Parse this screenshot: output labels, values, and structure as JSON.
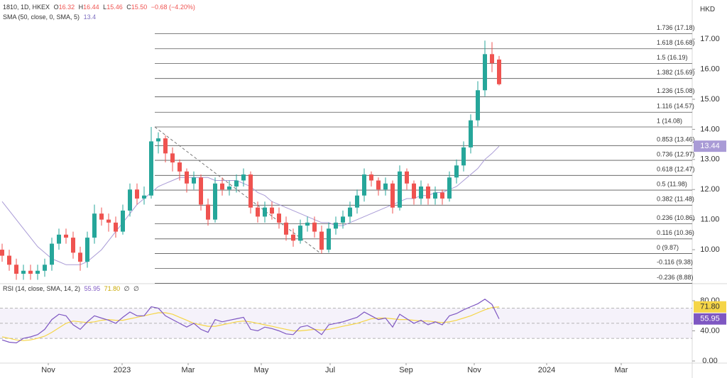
{
  "header": {
    "symbol": "1810, 1D, HKEX",
    "ohlc": [
      [
        "O",
        "16.32"
      ],
      [
        "H",
        "16.44"
      ],
      [
        "L",
        "15.46"
      ],
      [
        "C",
        "15.50"
      ]
    ],
    "change": "−0.68 (−4.20%)",
    "sma_value": "13.4",
    "rsi_values": [
      "55.95",
      "71.80",
      "∅",
      "∅"
    ],
    "currency": "HKD"
  },
  "chart_data": [
    {
      "type": "candlestick",
      "up_color": "#26a69a",
      "down_color": "#ef5350",
      "ylim": [
        8.87,
        18.3
      ],
      "yticks": [
        {
          "value": 17,
          "label": "17.00"
        },
        {
          "value": 16,
          "label": "16.00"
        },
        {
          "value": 15,
          "label": "15.00"
        },
        {
          "value": 14,
          "label": "14.00"
        },
        {
          "value": 13,
          "label": "13.00"
        },
        {
          "value": 12,
          "label": "12.00"
        },
        {
          "value": 11,
          "label": "11.00"
        },
        {
          "value": 10,
          "label": "10.00"
        }
      ],
      "open": [
        10.0,
        9.8,
        9.5,
        9.2,
        9.3,
        9.2,
        9.3,
        9.5,
        10.2,
        10.5,
        10.4,
        9.9,
        9.6,
        10.4,
        11.2,
        11.0,
        10.9,
        10.6,
        11.3,
        12.0,
        11.7,
        11.8,
        13.6,
        13.7,
        13.2,
        12.9,
        12.6,
        12.2,
        12.4,
        11.5,
        11.0,
        12.2,
        12.0,
        12.1,
        12.3,
        12.5,
        11.4,
        11.1,
        11.4,
        11.2,
        10.9,
        10.5,
        10.3,
        10.8,
        10.9,
        10.6,
        10.0,
        10.7,
        10.9,
        11.1,
        11.4,
        11.8,
        12.5,
        12.3,
        12.0,
        12.2,
        11.4,
        12.6,
        12.2,
        11.7,
        12.1,
        11.7,
        11.9,
        11.7,
        12.4,
        12.8,
        13.4,
        14.3,
        15.3,
        16.5,
        16.32
      ],
      "high": [
        10.2,
        10.0,
        9.7,
        9.5,
        9.5,
        9.5,
        9.7,
        10.4,
        10.7,
        10.7,
        10.6,
        10.1,
        10.6,
        11.5,
        11.4,
        11.2,
        11.1,
        11.5,
        12.2,
        12.2,
        12.1,
        14.08,
        13.9,
        13.8,
        13.4,
        13.0,
        12.7,
        12.6,
        12.5,
        11.7,
        12.4,
        12.4,
        12.3,
        12.5,
        12.7,
        12.6,
        11.6,
        11.6,
        11.6,
        11.4,
        11.1,
        10.7,
        11.0,
        11.1,
        11.1,
        10.8,
        10.9,
        11.1,
        11.3,
        11.6,
        12.0,
        12.7,
        12.6,
        12.4,
        12.4,
        12.3,
        12.8,
        12.7,
        12.3,
        12.3,
        12.2,
        12.1,
        12.0,
        12.6,
        13.0,
        13.6,
        14.5,
        15.6,
        16.95,
        16.9,
        16.44
      ],
      "low": [
        9.6,
        9.3,
        9.0,
        9.0,
        9.0,
        9.0,
        9.1,
        9.3,
        10.0,
        10.2,
        9.7,
        9.3,
        9.4,
        10.2,
        10.8,
        10.6,
        10.4,
        10.5,
        11.1,
        11.5,
        11.5,
        11.7,
        13.2,
        12.9,
        12.6,
        12.3,
        11.9,
        12.0,
        11.3,
        10.8,
        10.9,
        11.8,
        11.8,
        11.9,
        12.1,
        11.2,
        10.9,
        10.9,
        11.0,
        10.7,
        10.3,
        10.1,
        10.2,
        10.6,
        10.4,
        9.87,
        9.9,
        10.5,
        10.7,
        10.9,
        11.2,
        11.6,
        12.1,
        11.8,
        11.8,
        11.2,
        11.3,
        12.0,
        11.5,
        11.5,
        11.5,
        11.5,
        11.5,
        11.6,
        12.2,
        12.6,
        13.2,
        14.1,
        15.1,
        15.9,
        15.46
      ],
      "close": [
        9.8,
        9.5,
        9.2,
        9.3,
        9.2,
        9.3,
        9.5,
        10.2,
        10.5,
        10.4,
        9.9,
        9.6,
        10.4,
        11.2,
        11.0,
        10.9,
        10.6,
        11.3,
        12.0,
        11.7,
        11.8,
        13.6,
        13.7,
        13.2,
        12.9,
        12.6,
        12.2,
        12.4,
        11.5,
        11.0,
        12.2,
        12.0,
        12.1,
        12.3,
        12.5,
        11.4,
        11.1,
        11.4,
        11.2,
        10.9,
        10.5,
        10.3,
        10.8,
        10.9,
        10.6,
        10.0,
        10.7,
        10.9,
        11.1,
        11.4,
        11.8,
        12.5,
        12.3,
        12.0,
        12.2,
        11.4,
        12.6,
        12.2,
        11.7,
        12.1,
        11.7,
        11.9,
        11.7,
        12.4,
        12.8,
        13.4,
        14.3,
        15.3,
        16.5,
        16.2,
        15.5
      ],
      "series": [
        {
          "name": "SMA (50, close, 0, SMA, 5)",
          "color": "#a99bd6",
          "values": [
            11.6,
            11.3,
            11.0,
            10.7,
            10.4,
            10.1,
            9.9,
            9.7,
            9.6,
            9.5,
            9.5,
            9.5,
            9.6,
            9.8,
            10.0,
            10.3,
            10.6,
            10.9,
            11.2,
            11.5,
            11.7,
            11.9,
            12.1,
            12.2,
            12.3,
            12.4,
            12.4,
            12.4,
            12.4,
            12.4,
            12.3,
            12.3,
            12.3,
            12.3,
            12.2,
            12.1,
            11.9,
            11.8,
            11.6,
            11.5,
            11.4,
            11.3,
            11.2,
            11.1,
            11.0,
            10.9,
            10.9,
            10.8,
            10.8,
            10.9,
            11.0,
            11.1,
            11.2,
            11.3,
            11.4,
            11.5,
            11.6,
            11.7,
            11.7,
            11.8,
            11.8,
            11.9,
            11.9,
            12.0,
            12.1,
            12.3,
            12.5,
            12.7,
            13.0,
            13.2,
            13.44
          ]
        }
      ],
      "fib_levels": [
        {
          "value": 17.18,
          "label": "1.736 (17.18)"
        },
        {
          "value": 16.68,
          "label": "1.618 (16.68)"
        },
        {
          "value": 16.19,
          "label": "1.5 (16.19)"
        },
        {
          "value": 15.69,
          "label": "1.382 (15.69)"
        },
        {
          "value": 15.08,
          "label": "1.236 (15.08)"
        },
        {
          "value": 14.57,
          "label": "1.116 (14.57)"
        },
        {
          "value": 14.08,
          "label": "1 (14.08)"
        },
        {
          "value": 13.46,
          "label": "0.853 (13.46)"
        },
        {
          "value": 12.97,
          "label": "0.736 (12.97)"
        },
        {
          "value": 12.47,
          "label": "0.618 (12.47)"
        },
        {
          "value": 11.98,
          "label": "0.5 (11.98)"
        },
        {
          "value": 11.48,
          "label": "0.382 (11.48)"
        },
        {
          "value": 10.86,
          "label": "0.236 (10.86)"
        },
        {
          "value": 10.36,
          "label": "0.116 (10.36)"
        },
        {
          "value": 9.87,
          "label": "0 (9.87)"
        },
        {
          "value": 9.38,
          "label": "-0.116 (9.38)"
        },
        {
          "value": 8.88,
          "label": "-0.236 (8.88)"
        }
      ]
    },
    {
      "type": "line",
      "ylim": [
        -2.8,
        102.6
      ],
      "yticks": [
        {
          "value": 80,
          "label": "80.00"
        },
        {
          "value": 40,
          "label": "40.00"
        },
        {
          "value": 0,
          "label": "0.00"
        }
      ],
      "levels": [
        70,
        50,
        30
      ],
      "xlim": [
        -0.3,
        97.2
      ],
      "xticks": [
        {
          "value": 6.5,
          "label": "Nov"
        },
        {
          "value": 16.9,
          "label": "2023"
        },
        {
          "value": 26.2,
          "label": "Mar"
        },
        {
          "value": 36.5,
          "label": "May"
        },
        {
          "value": 46.2,
          "label": "Jul"
        },
        {
          "value": 56.9,
          "label": "Sep"
        },
        {
          "value": 66.5,
          "label": "Nov"
        },
        {
          "value": 76.7,
          "label": "2024"
        },
        {
          "value": 87.2,
          "label": "Mar"
        }
      ],
      "series": [
        {
          "name": "RSI (14, close, SMA, 14, 2)",
          "color": "#7e57c2",
          "values": [
            28,
            25,
            24,
            30,
            32,
            35,
            42,
            55,
            62,
            60,
            48,
            42,
            52,
            60,
            57,
            54,
            50,
            58,
            65,
            60,
            60,
            72,
            70,
            60,
            55,
            50,
            45,
            50,
            42,
            38,
            55,
            52,
            54,
            56,
            58,
            42,
            40,
            45,
            43,
            40,
            36,
            35,
            45,
            47,
            42,
            35,
            48,
            50,
            52,
            55,
            58,
            65,
            60,
            55,
            57,
            45,
            62,
            56,
            50,
            54,
            48,
            52,
            48,
            60,
            63,
            68,
            72,
            76,
            82,
            75,
            55.95
          ]
        },
        {
          "color": "#f5d547",
          "values": [
            32,
            30,
            28,
            27,
            28,
            30,
            33,
            38,
            44,
            50,
            53,
            52,
            51,
            52,
            54,
            55,
            54,
            54,
            56,
            58,
            60,
            62,
            64,
            64,
            62,
            58,
            54,
            50,
            48,
            46,
            46,
            48,
            50,
            52,
            53,
            52,
            50,
            48,
            46,
            44,
            42,
            40,
            40,
            41,
            42,
            41,
            42,
            44,
            46,
            48,
            50,
            53,
            56,
            57,
            57,
            56,
            55,
            55,
            54,
            53,
            53,
            52,
            51,
            52,
            54,
            57,
            60,
            64,
            68,
            71,
            71.8
          ]
        }
      ]
    }
  ]
}
